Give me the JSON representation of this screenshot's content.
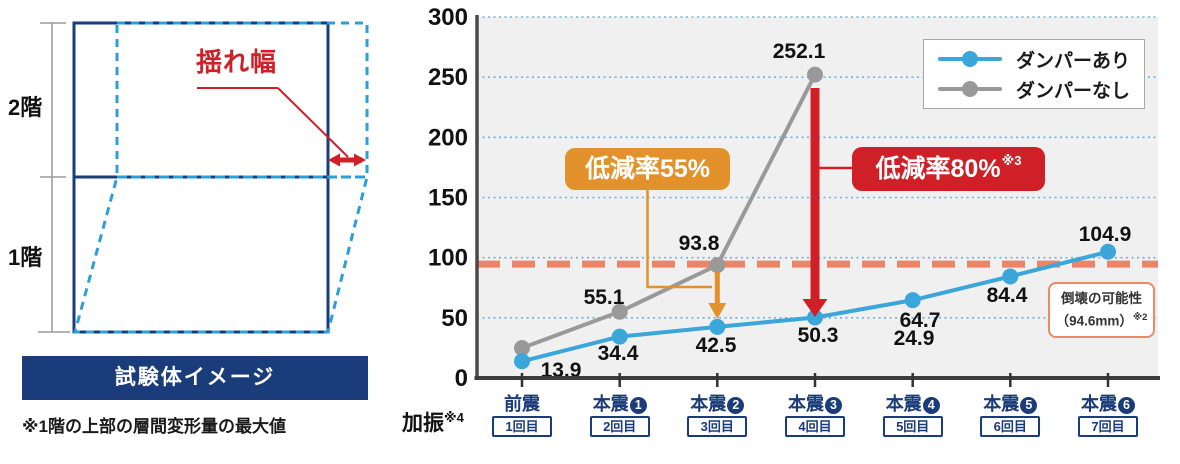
{
  "specimen": {
    "floor2_label": "2階",
    "floor1_label": "1階",
    "sway_label": "揺れ幅",
    "banner": "試験体イメージ",
    "footnote": "※1階の上部の層間変形量の最大値",
    "colors": {
      "frame_navy": "#1b3c7a",
      "deformed_blue": "#2b9fd9",
      "annotation_red": "#cf1f27"
    }
  },
  "chart_data": {
    "type": "line",
    "title": "",
    "xlabel": "",
    "ylabel": "",
    "ylim": [
      0,
      300
    ],
    "yticks": [
      0,
      50,
      100,
      150,
      200,
      250,
      300
    ],
    "grid": true,
    "legend_position": "top-right",
    "categories": [
      {
        "name": "前震",
        "num": null,
        "trial": "1回目"
      },
      {
        "name": "本震",
        "num": 1,
        "trial": "2回目"
      },
      {
        "name": "本震",
        "num": 2,
        "trial": "3回目"
      },
      {
        "name": "本震",
        "num": 3,
        "trial": "4回目"
      },
      {
        "name": "本震",
        "num": 4,
        "trial": "5回目"
      },
      {
        "name": "本震",
        "num": 5,
        "trial": "6回目"
      },
      {
        "name": "本震",
        "num": 6,
        "trial": "7回目"
      }
    ],
    "series": [
      {
        "name": "ダンパーあり",
        "color": "#3aa6d9",
        "values": [
          13.9,
          34.4,
          42.5,
          50.3,
          64.7,
          84.4,
          104.9
        ]
      },
      {
        "name": "ダンパーなし",
        "color": "#999999",
        "values": [
          24.9,
          55.1,
          93.8,
          252.1
        ]
      }
    ],
    "threshold": {
      "value": 94.6,
      "label_line1": "倒壊の可能性",
      "label_line2": "（94.6mm）",
      "note": "※2",
      "color": "#ec8467"
    },
    "annotations": [
      {
        "text": "低減率55%",
        "note": "",
        "color": "#e2912b",
        "at_category_index": 2
      },
      {
        "text": "低減率80%",
        "note": "※3",
        "color": "#cf1f27",
        "at_category_index": 3
      }
    ],
    "x_caption": "加振",
    "x_caption_note": "※4"
  }
}
